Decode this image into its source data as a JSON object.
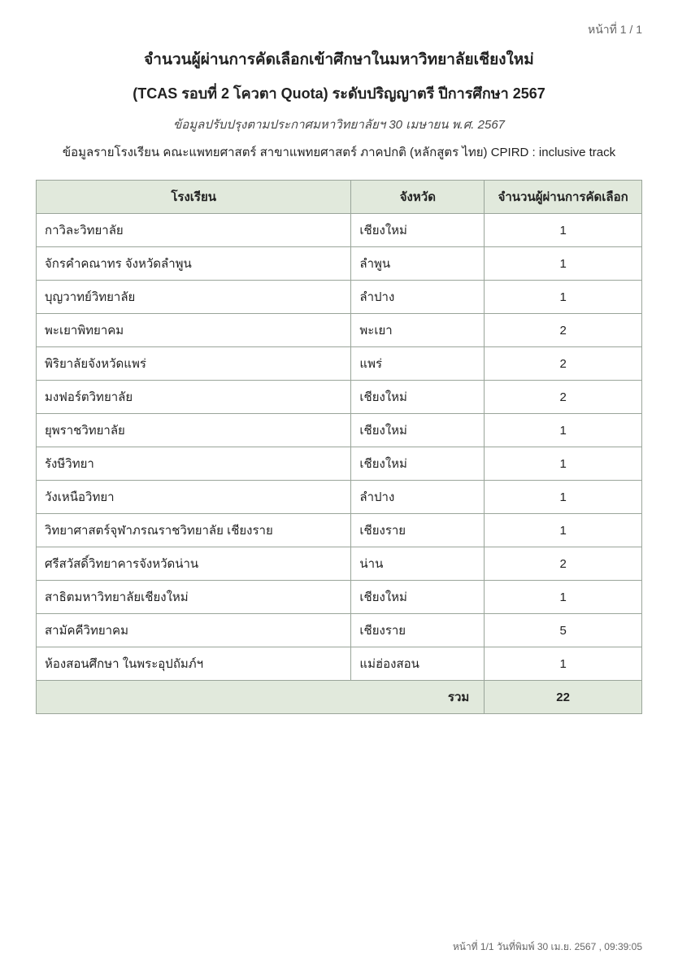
{
  "page_number_top": "หน้าที่ 1 / 1",
  "header": {
    "title1": "จำนวนผู้ผ่านการคัดเลือกเข้าศึกษาในมหาวิทยาลัยเชียงใหม่",
    "title2": "(TCAS รอบที่ 2 โควตา Quota) ระดับปริญญาตรี ปีการศึกษา 2567",
    "subtitle": "ข้อมูลปรับปรุงตามประกาศมหาวิทยาลัยฯ 30 เมษายน พ.ศ. 2567",
    "desc": "ข้อมูลรายโรงเรียน คณะแพทยศาสตร์ สาขาแพทยศาสตร์ ภาคปกติ (หลักสูตร ไทย) CPIRD : inclusive track"
  },
  "table": {
    "columns": [
      "โรงเรียน",
      "จังหวัด",
      "จำนวนผู้ผ่านการคัดเลือก"
    ],
    "rows": [
      {
        "school": "กาวิละวิทยาลัย",
        "province": "เชียงใหม่",
        "count": "1"
      },
      {
        "school": "จักรคำคณาทร จังหวัดลำพูน",
        "province": "ลำพูน",
        "count": "1"
      },
      {
        "school": "บุญวาทย์วิทยาลัย",
        "province": "ลำปาง",
        "count": "1"
      },
      {
        "school": "พะเยาพิทยาคม",
        "province": "พะเยา",
        "count": "2"
      },
      {
        "school": "พิริยาลัยจังหวัดแพร่",
        "province": "แพร่",
        "count": "2"
      },
      {
        "school": "มงฟอร์ตวิทยาลัย",
        "province": "เชียงใหม่",
        "count": "2"
      },
      {
        "school": "ยุพราชวิทยาลัย",
        "province": "เชียงใหม่",
        "count": "1"
      },
      {
        "school": "รังษีวิทยา",
        "province": "เชียงใหม่",
        "count": "1"
      },
      {
        "school": "วังเหนือวิทยา",
        "province": "ลำปาง",
        "count": "1"
      },
      {
        "school": "วิทยาศาสตร์จุฬาภรณราชวิทยาลัย เชียงราย",
        "province": "เชียงราย",
        "count": "1"
      },
      {
        "school": "ศรีสวัสดิ์วิทยาคารจังหวัดน่าน",
        "province": "น่าน",
        "count": "2"
      },
      {
        "school": "สาธิตมหาวิทยาลัยเชียงใหม่",
        "province": "เชียงใหม่",
        "count": "1"
      },
      {
        "school": "สามัคคีวิทยาคม",
        "province": "เชียงราย",
        "count": "5"
      },
      {
        "school": "ห้องสอนศึกษา ในพระอุปถัมภ์ฯ",
        "province": "แม่ฮ่องสอน",
        "count": "1"
      }
    ],
    "total_label": "รวม",
    "total_value": "22",
    "header_bg": "#e1e9dc",
    "border_color": "#9aa59a"
  },
  "footer": "หน้าที่ 1/1 วันที่พิมพ์ 30 เม.ย. 2567 , 09:39:05"
}
